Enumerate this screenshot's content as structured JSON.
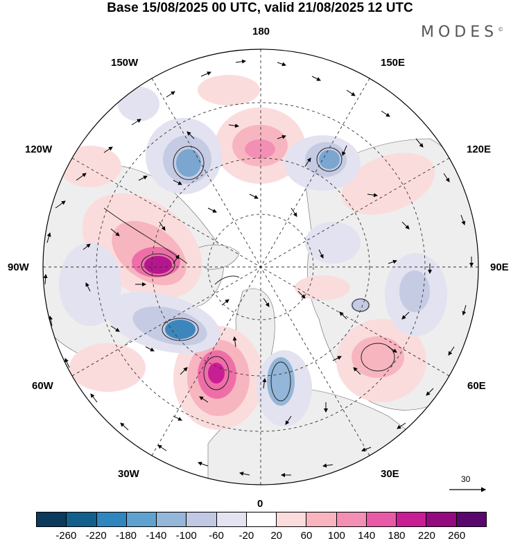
{
  "title": "Base 15/08/2025 00 UTC, valid 21/08/2025 12 UTC",
  "logo": "MODES",
  "logo_mark": "©",
  "labels": {
    "lon_180": "180",
    "lon_150W": "150W",
    "lon_150E": "150E",
    "lon_120W": "120W",
    "lon_120E": "120E",
    "lon_90W": "90W",
    "lon_90E": "90E",
    "lon_60W": "60W",
    "lon_60E": "60E",
    "lon_30W": "30W",
    "lon_30E": "30E",
    "lon_0": "0"
  },
  "wind_scale_label": "30",
  "colors": {
    "land": "#eeeeee",
    "ocean": "#ffffff",
    "pos_light": "#fbdcdc",
    "pos_mid": "#f7b5c0",
    "pos_strong": "#ee6fa8",
    "pos_max": "#b5168e",
    "neg_light": "#e2e2f0",
    "neg_mid": "#c5cbe3",
    "neg_strong": "#7aa6cf",
    "neg_max": "#3d86bb"
  },
  "colorbar": {
    "colors": [
      "#0b3a5c",
      "#125f8c",
      "#2f86bf",
      "#5fa2cf",
      "#93b6d9",
      "#c1c8e3",
      "#e3e3f1",
      "#ffffff",
      "#fbdcdc",
      "#f8b5c0",
      "#f38fb5",
      "#e95aa6",
      "#c81e93",
      "#94097d",
      "#5a066f"
    ],
    "ticks": [
      "-260",
      "-220",
      "-180",
      "-140",
      "-100",
      "-60",
      "-20",
      "20",
      "60",
      "100",
      "140",
      "180",
      "220",
      "260"
    ]
  }
}
